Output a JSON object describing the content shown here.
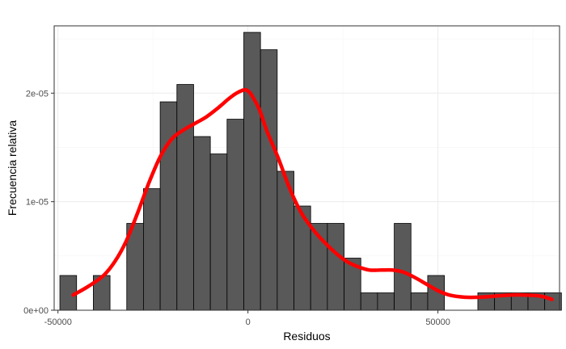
{
  "chart_data": {
    "type": "bar",
    "subtype": "histogram-with-density",
    "xlabel": "Residuos",
    "ylabel": "Frecuencia relativa",
    "xlim": [
      -51000,
      82000
    ],
    "ylim": [
      0,
      2.62e-05
    ],
    "x_ticks": [
      {
        "value": -50000,
        "label": "-50000"
      },
      {
        "value": 0,
        "label": "0"
      },
      {
        "value": 50000,
        "label": "50000"
      }
    ],
    "y_ticks": [
      {
        "value": 0,
        "label": "0e+00"
      },
      {
        "value": 1e-05,
        "label": "1e-05"
      },
      {
        "value": 2e-05,
        "label": "2e-05"
      }
    ],
    "grid": true,
    "bar_color": "#595959",
    "bar_edge_color": "#000000",
    "density_color": "#ff0000",
    "bins": [
      {
        "x0": -49500,
        "x1": -45100,
        "density": 3.2e-06
      },
      {
        "x0": -45100,
        "x1": -40700,
        "density": 0.0
      },
      {
        "x0": -40700,
        "x1": -36300,
        "density": 3.2e-06
      },
      {
        "x0": -36300,
        "x1": -31900,
        "density": 0.0
      },
      {
        "x0": -31900,
        "x1": -27500,
        "density": 8e-06
      },
      {
        "x0": -27500,
        "x1": -23100,
        "density": 1.12e-05
      },
      {
        "x0": -23100,
        "x1": -18700,
        "density": 1.92e-05
      },
      {
        "x0": -18700,
        "x1": -14300,
        "density": 2.08e-05
      },
      {
        "x0": -14300,
        "x1": -9900,
        "density": 1.6e-05
      },
      {
        "x0": -9900,
        "x1": -5500,
        "density": 1.44e-05
      },
      {
        "x0": -5500,
        "x1": -1100,
        "density": 1.76e-05
      },
      {
        "x0": -1100,
        "x1": 3300,
        "density": 2.56e-05
      },
      {
        "x0": 3300,
        "x1": 7700,
        "density": 2.4e-05
      },
      {
        "x0": 7700,
        "x1": 12100,
        "density": 1.28e-05
      },
      {
        "x0": 12100,
        "x1": 16500,
        "density": 9.6e-06
      },
      {
        "x0": 16500,
        "x1": 20900,
        "density": 8e-06
      },
      {
        "x0": 20900,
        "x1": 25300,
        "density": 8e-06
      },
      {
        "x0": 25300,
        "x1": 29700,
        "density": 4.8e-06
      },
      {
        "x0": 29700,
        "x1": 34100,
        "density": 1.6e-06
      },
      {
        "x0": 34100,
        "x1": 38500,
        "density": 1.6e-06
      },
      {
        "x0": 38500,
        "x1": 42900,
        "density": 8e-06
      },
      {
        "x0": 42900,
        "x1": 47300,
        "density": 1.6e-06
      },
      {
        "x0": 47300,
        "x1": 51700,
        "density": 3.2e-06
      },
      {
        "x0": 51700,
        "x1": 56100,
        "density": 0.0
      },
      {
        "x0": 56100,
        "x1": 60500,
        "density": 0.0
      },
      {
        "x0": 60500,
        "x1": 64900,
        "density": 1.6e-06
      },
      {
        "x0": 64900,
        "x1": 69300,
        "density": 1.6e-06
      },
      {
        "x0": 69300,
        "x1": 73700,
        "density": 1.6e-06
      },
      {
        "x0": 73700,
        "x1": 78100,
        "density": 1.6e-06
      },
      {
        "x0": 78100,
        "x1": 82500,
        "density": 1.6e-06
      }
    ],
    "density_curve": {
      "x": [
        -46000,
        -42000,
        -38000,
        -35000,
        -32000,
        -29000,
        -26000,
        -23000,
        -20000,
        -17000,
        -14000,
        -11000,
        -8000,
        -5000,
        -3000,
        -1000,
        0,
        1000,
        3000,
        5000,
        8000,
        11000,
        14000,
        17000,
        20000,
        23000,
        26000,
        29000,
        32000,
        35000,
        38000,
        41000,
        44000,
        47000,
        50000,
        53000,
        57000,
        61000,
        65000,
        69000,
        73000,
        77000,
        80000
      ],
      "y": [
        1.4e-06,
        2.2e-06,
        3.2e-06,
        4.5e-06,
        6.4e-06,
        9e-06,
        1.18e-05,
        1.42e-05,
        1.58e-05,
        1.66e-05,
        1.72e-05,
        1.78e-05,
        1.86e-05,
        1.95e-05,
        2e-05,
        2.03e-05,
        2.02e-05,
        1.98e-05,
        1.85e-05,
        1.65e-05,
        1.4e-05,
        1.12e-05,
        9e-06,
        7.5e-06,
        6.3e-06,
        5.3e-06,
        4.5e-06,
        4e-06,
        3.7e-06,
        3.7e-06,
        3.7e-06,
        3.5e-06,
        3e-06,
        2.4e-06,
        1.8e-06,
        1.4e-06,
        1.2e-06,
        1.2e-06,
        1.3e-06,
        1.4e-06,
        1.4e-06,
        1.3e-06,
        1e-06
      ]
    }
  }
}
